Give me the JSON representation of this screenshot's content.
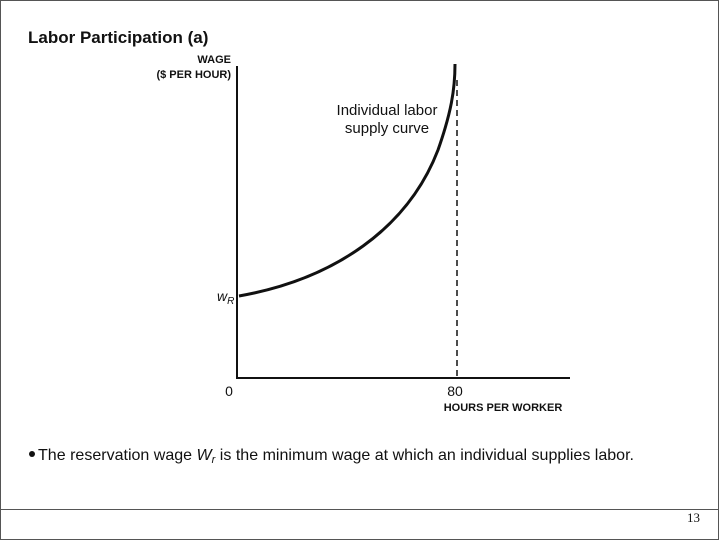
{
  "title": "Labor Participation (a)",
  "diagram": {
    "y_axis_label": [
      "WAGE",
      "($ PER HOUR)"
    ],
    "curve_label": [
      "Individual labor",
      "supply curve"
    ],
    "reservation_wage_label": {
      "symbol": "w",
      "subscript": "R"
    },
    "origin_label": "0",
    "x_mark_label": "80",
    "x_axis_label": "HOURS PER WORKER"
  },
  "bullet": {
    "before": "The reservation wage ",
    "symbol": "W",
    "subscript": "r",
    "after": " is the minimum wage at which an individual supplies labor."
  },
  "page_number": "13"
}
